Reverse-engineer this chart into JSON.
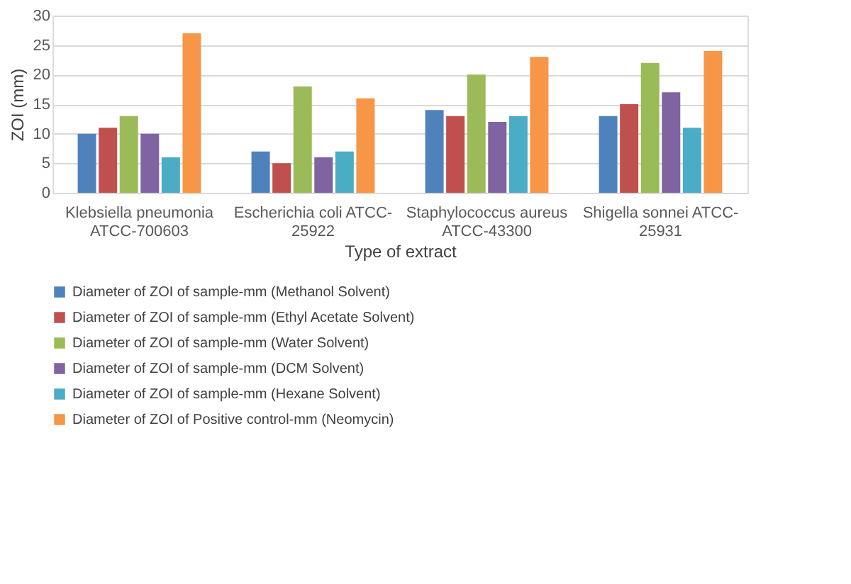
{
  "chart_data": {
    "type": "bar",
    "xlabel": "Type of extract",
    "ylabel": "ZOI (mm)",
    "categories": [
      "Klebsiella pneumonia\nATCC-700603",
      "Escherichia coli ATCC-\n25922",
      "Staphylococcus aureus\nATCC-43300",
      "Shigella sonnei ATCC-\n25931"
    ],
    "series": [
      {
        "name": "Diameter of ZOI of sample-mm (Methanol Solvent)",
        "color": "#4f81bd",
        "values": [
          10,
          7,
          14,
          13
        ]
      },
      {
        "name": "Diameter of ZOI of sample-mm (Ethyl Acetate Solvent)",
        "color": "#c0504d",
        "values": [
          11,
          5,
          13,
          15
        ]
      },
      {
        "name": "Diameter of ZOI of sample-mm (Water Solvent)",
        "color": "#9bbb59",
        "values": [
          13,
          18,
          20,
          22
        ]
      },
      {
        "name": "Diameter of ZOI of sample-mm (DCM Solvent)",
        "color": "#8064a2",
        "values": [
          10,
          6,
          12,
          17
        ]
      },
      {
        "name": "Diameter of ZOI of sample-mm (Hexane Solvent)",
        "color": "#4bacc6",
        "values": [
          6,
          7,
          13,
          11
        ]
      },
      {
        "name": "Diameter of ZOI of Positive control-mm (Neomycin)",
        "color": "#f79646",
        "values": [
          27,
          16,
          23,
          24
        ]
      }
    ],
    "ylim": [
      0,
      30
    ],
    "yticks": [
      0,
      5,
      10,
      15,
      20,
      25,
      30
    ],
    "grid": "y",
    "legend": "bottom"
  }
}
